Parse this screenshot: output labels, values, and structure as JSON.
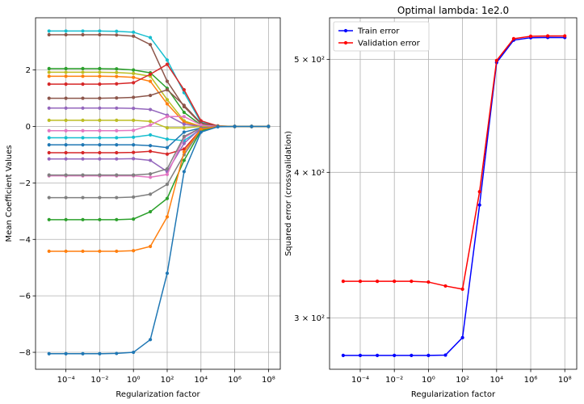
{
  "chart_data": [
    {
      "type": "line",
      "title": "",
      "xlabel": "Regularization factor",
      "ylabel": "Mean Coefficient Values",
      "xscale": "log",
      "x": [
        1e-05,
        0.0001,
        0.001,
        0.01,
        0.1,
        1,
        10,
        100,
        1000,
        10000,
        100000,
        1000000,
        10000000,
        100000000
      ],
      "xlim_exp": [
        -5.8,
        8.7
      ],
      "ylim": [
        -8.6,
        3.85
      ],
      "xticks": [
        {
          "value": 0.0001,
          "label": "10⁻⁴"
        },
        {
          "value": 0.01,
          "label": "10⁻²"
        },
        {
          "value": 1,
          "label": "10⁰"
        },
        {
          "value": 100,
          "label": "10²"
        },
        {
          "value": 10000,
          "label": "10⁴"
        },
        {
          "value": 1000000,
          "label": "10⁶"
        },
        {
          "value": 100000000,
          "label": "10⁸"
        }
      ],
      "yticks": [
        {
          "value": 2,
          "label": "2"
        },
        {
          "value": 0,
          "label": "0"
        },
        {
          "value": -2,
          "label": "−2"
        },
        {
          "value": -4,
          "label": "−4"
        },
        {
          "value": -6,
          "label": "−6"
        },
        {
          "value": -8,
          "label": "−8"
        }
      ],
      "grid": true,
      "series": [
        {
          "color": "#17becf",
          "values": [
            3.38,
            3.38,
            3.38,
            3.38,
            3.37,
            3.34,
            3.15,
            2.35,
            1.2,
            0.15,
            0.02,
            0,
            0,
            0
          ]
        },
        {
          "color": "#8c564b",
          "values": [
            3.25,
            3.25,
            3.25,
            3.25,
            3.24,
            3.2,
            2.9,
            1.6,
            0.7,
            0.1,
            0.01,
            0,
            0,
            0
          ]
        },
        {
          "color": "#2ca02c",
          "values": [
            2.05,
            2.05,
            2.05,
            2.05,
            2.04,
            2.0,
            1.9,
            1.35,
            0.5,
            0.05,
            0,
            0,
            0,
            0
          ]
        },
        {
          "color": "#bcbd22",
          "values": [
            1.92,
            1.92,
            1.92,
            1.92,
            1.91,
            1.88,
            1.78,
            0.95,
            0.2,
            0,
            0,
            0,
            0,
            0
          ]
        },
        {
          "color": "#ff7f0e",
          "values": [
            1.78,
            1.78,
            1.78,
            1.78,
            1.77,
            1.74,
            1.6,
            0.8,
            0.15,
            0,
            0,
            0,
            0,
            0
          ]
        },
        {
          "color": "#d62728",
          "values": [
            1.5,
            1.5,
            1.5,
            1.5,
            1.51,
            1.55,
            1.85,
            2.2,
            1.3,
            0.2,
            0.02,
            0,
            0,
            0
          ]
        },
        {
          "color": "#8c564b",
          "values": [
            1.0,
            1.0,
            1.0,
            1.0,
            1.01,
            1.03,
            1.1,
            1.3,
            0.75,
            0.12,
            0.01,
            0,
            0,
            0
          ]
        },
        {
          "color": "#9467bd",
          "values": [
            0.65,
            0.65,
            0.65,
            0.65,
            0.65,
            0.64,
            0.6,
            0.4,
            0.08,
            0,
            0,
            0,
            0,
            0
          ]
        },
        {
          "color": "#bcbd22",
          "values": [
            0.22,
            0.22,
            0.22,
            0.22,
            0.22,
            0.22,
            0.18,
            -0.05,
            -0.05,
            0,
            0,
            0,
            0,
            0
          ]
        },
        {
          "color": "#e377c2",
          "values": [
            -0.15,
            -0.15,
            -0.15,
            -0.15,
            -0.15,
            -0.14,
            0.05,
            0.35,
            0.35,
            0.05,
            0,
            0,
            0,
            0
          ]
        },
        {
          "color": "#17becf",
          "values": [
            -0.4,
            -0.4,
            -0.4,
            -0.4,
            -0.4,
            -0.38,
            -0.3,
            -0.45,
            -0.5,
            -0.1,
            0,
            0,
            0,
            0
          ]
        },
        {
          "color": "#1f77b4",
          "values": [
            -0.65,
            -0.65,
            -0.65,
            -0.65,
            -0.65,
            -0.65,
            -0.68,
            -0.75,
            -0.2,
            -0.05,
            0,
            0,
            0,
            0
          ]
        },
        {
          "color": "#d62728",
          "values": [
            -0.93,
            -0.93,
            -0.93,
            -0.93,
            -0.93,
            -0.92,
            -0.88,
            -0.98,
            -0.8,
            -0.1,
            0,
            0,
            0,
            0
          ]
        },
        {
          "color": "#9467bd",
          "values": [
            -1.15,
            -1.15,
            -1.15,
            -1.15,
            -1.15,
            -1.14,
            -1.2,
            -1.6,
            -0.6,
            -0.05,
            0,
            0,
            0,
            0
          ]
        },
        {
          "color": "#e377c2",
          "values": [
            -1.75,
            -1.75,
            -1.75,
            -1.75,
            -1.75,
            -1.75,
            -1.8,
            -1.7,
            -0.4,
            -0.05,
            0,
            0,
            0,
            0
          ]
        },
        {
          "color": "#7f7f7f",
          "values": [
            -1.72,
            -1.72,
            -1.72,
            -1.72,
            -1.72,
            -1.72,
            -1.68,
            -1.5,
            -0.35,
            -0.05,
            0,
            0,
            0,
            0
          ]
        },
        {
          "color": "#7f7f7f",
          "values": [
            -2.52,
            -2.52,
            -2.52,
            -2.52,
            -2.52,
            -2.5,
            -2.4,
            -2.05,
            -1.0,
            -0.12,
            0,
            0,
            0,
            0
          ]
        },
        {
          "color": "#2ca02c",
          "values": [
            -3.3,
            -3.3,
            -3.3,
            -3.3,
            -3.3,
            -3.28,
            -3.02,
            -2.55,
            -1.2,
            -0.15,
            0,
            0,
            0,
            0
          ]
        },
        {
          "color": "#ff7f0e",
          "values": [
            -4.42,
            -4.42,
            -4.42,
            -4.42,
            -4.42,
            -4.4,
            -4.25,
            -3.2,
            -0.9,
            -0.1,
            0,
            0,
            0,
            0
          ]
        },
        {
          "color": "#1f77b4",
          "values": [
            -8.05,
            -8.05,
            -8.05,
            -8.05,
            -8.04,
            -8.0,
            -7.55,
            -5.2,
            -1.6,
            -0.2,
            -0.01,
            0,
            0,
            0
          ]
        }
      ]
    },
    {
      "type": "line",
      "title": "Optimal lambda: 1e2.0",
      "xlabel": "Regularization factor",
      "ylabel": "Squared error (crossvalidation)",
      "xscale": "log",
      "yscale": "log",
      "x": [
        1e-05,
        0.0001,
        0.001,
        0.01,
        0.1,
        1,
        10,
        100,
        1000,
        10000,
        100000,
        1000000,
        10000000,
        100000000
      ],
      "xlim_exp": [
        -5.8,
        8.7
      ],
      "ylim": [
        271,
        543
      ],
      "xticks": [
        {
          "value": 0.0001,
          "label": "10⁻⁴"
        },
        {
          "value": 0.01,
          "label": "10⁻²"
        },
        {
          "value": 1,
          "label": "10⁰"
        },
        {
          "value": 100,
          "label": "10²"
        },
        {
          "value": 10000,
          "label": "10⁴"
        },
        {
          "value": 1000000,
          "label": "10⁶"
        },
        {
          "value": 100000000,
          "label": "10⁸"
        }
      ],
      "yticks": [
        {
          "value": 500,
          "label": "5 × 10²"
        },
        {
          "value": 400,
          "label": "4 × 10²"
        },
        {
          "value": 300,
          "label": "3 × 10²"
        }
      ],
      "grid": true,
      "legend_position": "top-left",
      "series": [
        {
          "name": "Train error",
          "color": "#0000ff",
          "values": [
            278.5,
            278.5,
            278.5,
            278.5,
            278.5,
            278.5,
            278.7,
            288.5,
            375,
            497,
            519.5,
            522,
            522.3,
            522.2
          ]
        },
        {
          "name": "Validation error",
          "color": "#ff0000",
          "values": [
            322.5,
            322.5,
            322.5,
            322.5,
            322.5,
            322.0,
            319.5,
            317.5,
            385,
            499,
            521,
            523.5,
            523.8,
            523.8
          ]
        }
      ]
    }
  ]
}
